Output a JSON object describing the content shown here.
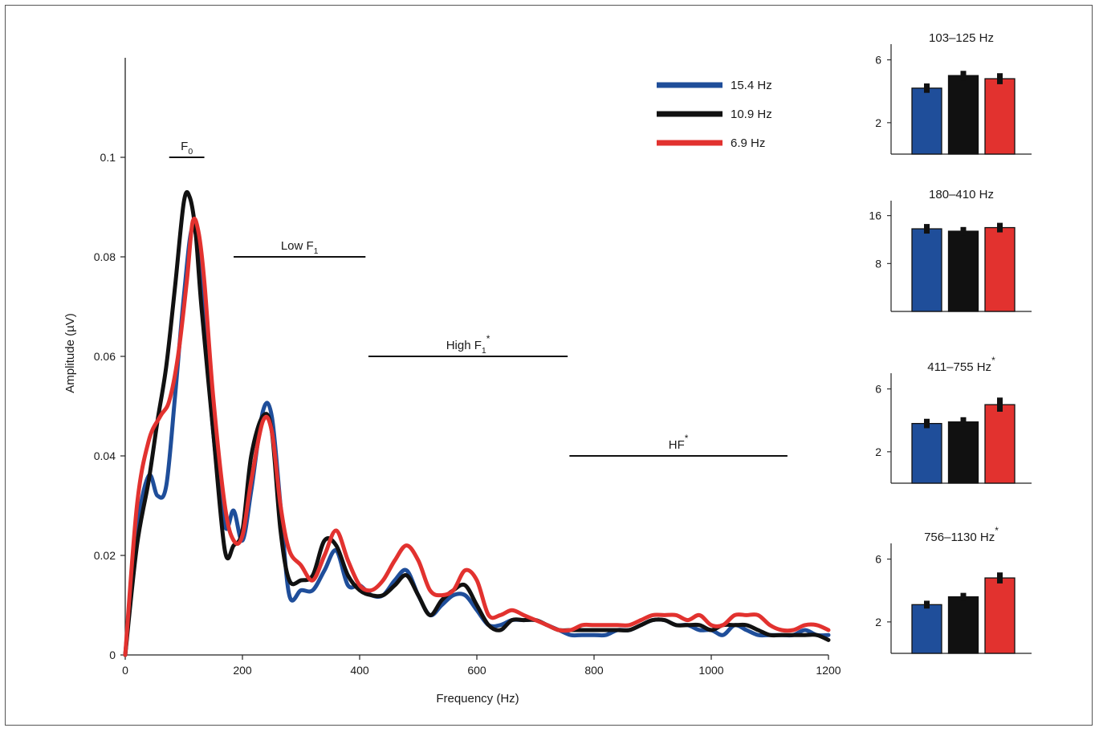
{
  "colors": {
    "blue": "#1f4e9a",
    "black": "#111111",
    "red": "#e2322f"
  },
  "chart_data": [
    {
      "type": "line",
      "xlabel": "Frequency (Hz)",
      "ylabel": "Amplitude (µV)",
      "xlim": [
        0,
        1200
      ],
      "ylim": [
        0,
        0.12
      ],
      "xticks": [
        "0",
        "200",
        "400",
        "600",
        "800",
        "1000",
        "1200"
      ],
      "yticks": [
        "0",
        "0.02",
        "0.04",
        "0.06",
        "0.08",
        "0.1"
      ],
      "legend_position": "top-right",
      "ranges": [
        {
          "label": "F",
          "sub": "0",
          "sup": "",
          "start": 75,
          "end": 135,
          "y": 0.1
        },
        {
          "label": "Low F",
          "sub": "1",
          "sup": "",
          "start": 185,
          "end": 410,
          "y": 0.08
        },
        {
          "label": "High F",
          "sub": "1",
          "sup": "*",
          "start": 415,
          "end": 755,
          "y": 0.06
        },
        {
          "label": "HF",
          "sub": "",
          "sup": "*",
          "start": 758,
          "end": 1130,
          "y": 0.04
        }
      ],
      "series": [
        {
          "name": "15.4 Hz",
          "color": "#1f4e9a",
          "x": [
            0,
            20,
            40,
            55,
            70,
            85,
            100,
            115,
            130,
            150,
            170,
            185,
            200,
            215,
            235,
            250,
            265,
            280,
            300,
            320,
            340,
            360,
            380,
            400,
            420,
            440,
            460,
            480,
            500,
            520,
            540,
            560,
            580,
            600,
            620,
            640,
            660,
            680,
            700,
            720,
            740,
            760,
            780,
            800,
            820,
            840,
            860,
            880,
            900,
            920,
            940,
            960,
            980,
            1000,
            1020,
            1040,
            1060,
            1080,
            1100,
            1120,
            1140,
            1160,
            1180,
            1200
          ],
          "y": [
            0,
            0.025,
            0.036,
            0.032,
            0.034,
            0.052,
            0.072,
            0.086,
            0.075,
            0.045,
            0.026,
            0.029,
            0.023,
            0.033,
            0.049,
            0.048,
            0.03,
            0.012,
            0.013,
            0.013,
            0.017,
            0.021,
            0.014,
            0.014,
            0.012,
            0.012,
            0.015,
            0.017,
            0.012,
            0.008,
            0.01,
            0.012,
            0.012,
            0.009,
            0.006,
            0.006,
            0.007,
            0.007,
            0.007,
            0.006,
            0.005,
            0.004,
            0.004,
            0.004,
            0.004,
            0.005,
            0.005,
            0.006,
            0.007,
            0.007,
            0.006,
            0.006,
            0.005,
            0.005,
            0.004,
            0.006,
            0.005,
            0.004,
            0.004,
            0.004,
            0.004,
            0.005,
            0.004,
            0.004
          ]
        },
        {
          "name": "10.9 Hz",
          "color": "#111111",
          "x": [
            0,
            20,
            40,
            55,
            70,
            85,
            100,
            110,
            120,
            130,
            150,
            170,
            185,
            200,
            215,
            235,
            250,
            265,
            280,
            300,
            320,
            340,
            360,
            380,
            400,
            420,
            440,
            460,
            480,
            500,
            520,
            540,
            560,
            580,
            600,
            620,
            640,
            660,
            680,
            700,
            720,
            740,
            760,
            780,
            800,
            820,
            840,
            860,
            880,
            900,
            920,
            940,
            960,
            980,
            1000,
            1020,
            1040,
            1060,
            1080,
            1100,
            1120,
            1140,
            1160,
            1180,
            1200
          ],
          "y": [
            0,
            0.022,
            0.035,
            0.047,
            0.058,
            0.074,
            0.091,
            0.092,
            0.085,
            0.07,
            0.045,
            0.021,
            0.022,
            0.025,
            0.04,
            0.048,
            0.045,
            0.025,
            0.015,
            0.015,
            0.016,
            0.023,
            0.022,
            0.016,
            0.013,
            0.012,
            0.012,
            0.014,
            0.016,
            0.012,
            0.008,
            0.011,
            0.013,
            0.014,
            0.01,
            0.006,
            0.005,
            0.007,
            0.007,
            0.007,
            0.006,
            0.005,
            0.005,
            0.005,
            0.005,
            0.005,
            0.005,
            0.005,
            0.006,
            0.007,
            0.007,
            0.006,
            0.006,
            0.006,
            0.005,
            0.006,
            0.006,
            0.006,
            0.005,
            0.004,
            0.004,
            0.004,
            0.004,
            0.004,
            0.003
          ]
        },
        {
          "name": "6.9 Hz",
          "color": "#e2322f",
          "x": [
            0,
            20,
            40,
            60,
            75,
            90,
            105,
            115,
            125,
            135,
            150,
            170,
            185,
            200,
            215,
            235,
            250,
            265,
            280,
            300,
            320,
            340,
            360,
            380,
            400,
            420,
            440,
            460,
            480,
            500,
            520,
            540,
            560,
            580,
            600,
            620,
            640,
            660,
            680,
            700,
            720,
            740,
            760,
            780,
            800,
            820,
            840,
            860,
            880,
            900,
            920,
            940,
            960,
            980,
            1000,
            1020,
            1040,
            1060,
            1080,
            1100,
            1120,
            1140,
            1160,
            1180,
            1200
          ],
          "y": [
            0,
            0.03,
            0.043,
            0.048,
            0.051,
            0.06,
            0.075,
            0.087,
            0.085,
            0.075,
            0.052,
            0.03,
            0.023,
            0.024,
            0.035,
            0.047,
            0.045,
            0.03,
            0.021,
            0.018,
            0.015,
            0.02,
            0.025,
            0.019,
            0.014,
            0.013,
            0.015,
            0.019,
            0.022,
            0.019,
            0.013,
            0.012,
            0.013,
            0.017,
            0.015,
            0.008,
            0.008,
            0.009,
            0.008,
            0.007,
            0.006,
            0.005,
            0.005,
            0.006,
            0.006,
            0.006,
            0.006,
            0.006,
            0.007,
            0.008,
            0.008,
            0.008,
            0.007,
            0.008,
            0.006,
            0.006,
            0.008,
            0.008,
            0.008,
            0.006,
            0.005,
            0.005,
            0.006,
            0.006,
            0.005
          ]
        }
      ]
    },
    {
      "type": "bar",
      "title": "103–125 Hz",
      "title_sup": "",
      "categories": [
        "15.4 Hz",
        "10.9 Hz",
        "6.9 Hz"
      ],
      "values": [
        4.2,
        5.0,
        4.8
      ],
      "errors": [
        0.3,
        0.3,
        0.35
      ],
      "ylim": [
        0,
        7
      ],
      "yticks": [
        2,
        6
      ]
    },
    {
      "type": "bar",
      "title": "180–410 Hz",
      "title_sup": "",
      "categories": [
        "15.4 Hz",
        "10.9 Hz",
        "6.9 Hz"
      ],
      "values": [
        13.8,
        13.4,
        14.0
      ],
      "errors": [
        0.8,
        0.7,
        0.8
      ],
      "ylim": [
        0,
        18.5
      ],
      "yticks": [
        8,
        16
      ]
    },
    {
      "type": "bar",
      "title": "411–755 Hz",
      "title_sup": "*",
      "categories": [
        "15.4 Hz",
        "10.9 Hz",
        "6.9 Hz"
      ],
      "values": [
        3.8,
        3.9,
        5.0
      ],
      "errors": [
        0.3,
        0.3,
        0.45
      ],
      "ylim": [
        0,
        7
      ],
      "yticks": [
        2,
        6
      ]
    },
    {
      "type": "bar",
      "title": "756–1130 Hz",
      "title_sup": "*",
      "categories": [
        "15.4 Hz",
        "10.9 Hz",
        "6.9 Hz"
      ],
      "values": [
        3.1,
        3.6,
        4.8
      ],
      "errors": [
        0.25,
        0.25,
        0.35
      ],
      "ylim": [
        0,
        7
      ],
      "yticks": [
        2,
        6
      ]
    }
  ]
}
